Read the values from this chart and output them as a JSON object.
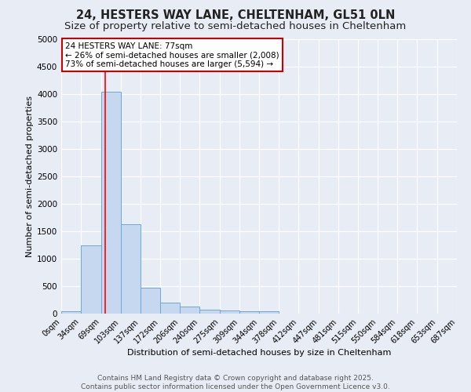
{
  "title": "24, HESTERS WAY LANE, CHELTENHAM, GL51 0LN",
  "subtitle": "Size of property relative to semi-detached houses in Cheltenham",
  "xlabel": "Distribution of semi-detached houses by size in Cheltenham",
  "ylabel": "Number of semi-detached properties",
  "bin_edges": [
    0,
    34,
    69,
    103,
    137,
    172,
    206,
    240,
    275,
    309,
    344,
    378,
    412,
    447,
    481,
    515,
    550,
    584,
    618,
    653,
    687
  ],
  "bar_heights": [
    50,
    1250,
    4050,
    1625,
    475,
    200,
    125,
    75,
    60,
    50,
    50,
    0,
    0,
    0,
    0,
    0,
    0,
    0,
    0,
    0
  ],
  "bar_color": "#c5d8ef",
  "bar_edge_color": "#6aaad4",
  "red_line_x": 77,
  "annotation_text": "24 HESTERS WAY LANE: 77sqm\n← 26% of semi-detached houses are smaller (2,008)\n73% of semi-detached houses are larger (5,594) →",
  "annotation_box_color": "#ffffff",
  "annotation_box_edge_color": "#cc0000",
  "ylim": [
    0,
    5000
  ],
  "yticks": [
    0,
    500,
    1000,
    1500,
    2000,
    2500,
    3000,
    3500,
    4000,
    4500,
    5000
  ],
  "footer_text": "Contains HM Land Registry data © Crown copyright and database right 2025.\nContains public sector information licensed under the Open Government Licence v3.0.",
  "bg_color": "#e8ecf5",
  "plot_bg_color": "#e8ecf5",
  "grid_color": "#ffffff",
  "title_fontsize": 10.5,
  "subtitle_fontsize": 9.5,
  "tick_label_fontsize": 7,
  "footer_fontsize": 6.5
}
